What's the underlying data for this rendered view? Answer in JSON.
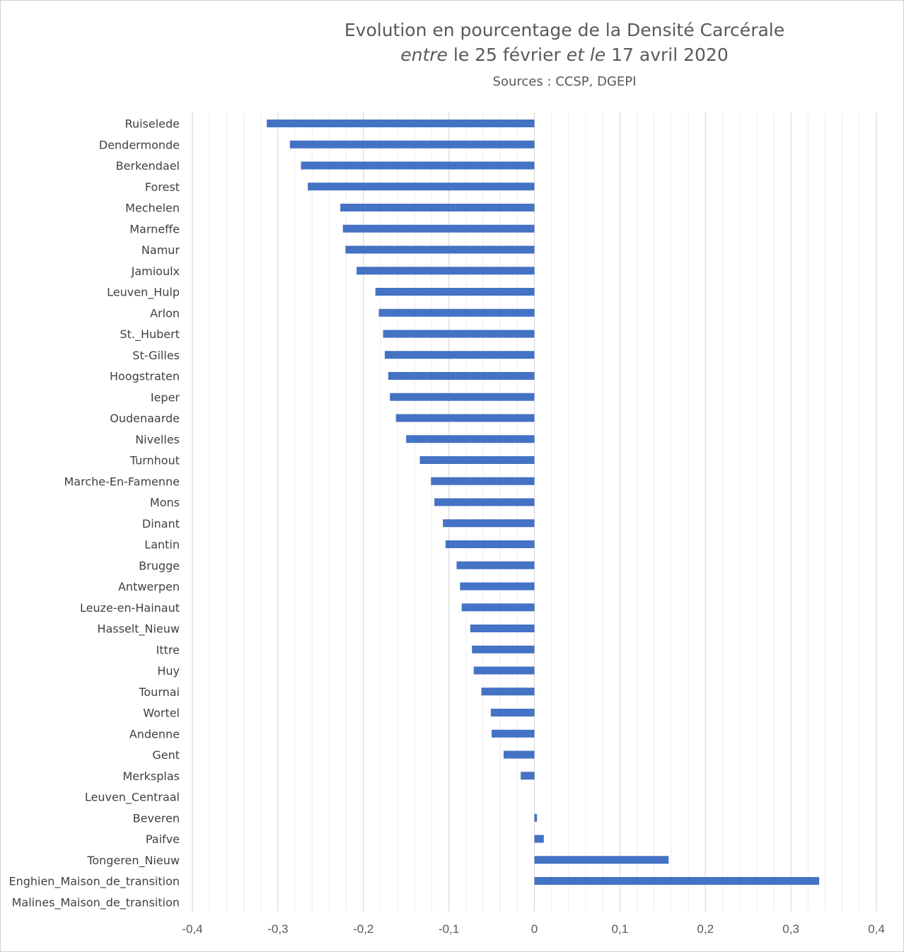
{
  "title": {
    "line1": "Evolution en pourcentage de la Densité Carcérale",
    "line2_parts": [
      {
        "text": "entre",
        "italic": true
      },
      {
        "text": " le 25 février ",
        "italic": false
      },
      {
        "text": "et le",
        "italic": true
      },
      {
        "text": " 17 avril 2020",
        "italic": false
      }
    ],
    "subtitle": "Sources : CCSP, DGEPI"
  },
  "chart_data": {
    "type": "bar",
    "orientation": "horizontal",
    "title": "Evolution en pourcentage de la Densité Carcérale entre le 25 février et le 17 avril 2020",
    "subtitle": "Sources : CCSP, DGEPI",
    "categories": [
      "Ruiselede",
      "Dendermonde",
      "Berkendael",
      "Forest",
      "Mechelen",
      "Marneffe",
      "Namur",
      "Jamioulx",
      "Leuven_Hulp",
      "Arlon",
      "St._Hubert",
      "St-Gilles",
      "Hoogstraten",
      "Ieper",
      "Oudenaarde",
      "Nivelles",
      "Turnhout",
      "Marche-En-Famenne",
      "Mons",
      "Dinant",
      "Lantin",
      "Brugge",
      "Antwerpen",
      "Leuze-en-Hainaut",
      "Hasselt_Nieuw",
      "Ittre",
      "Huy",
      "Tournai",
      "Wortel",
      "Andenne",
      "Gent",
      "Merksplas",
      "Leuven_Centraal",
      "Beveren",
      "Paifve",
      "Tongeren_Nieuw",
      "Enghien_Maison_de_transition",
      "Malines_Maison_de_transition"
    ],
    "values": [
      -0.313,
      -0.286,
      -0.273,
      -0.265,
      -0.227,
      -0.224,
      -0.221,
      -0.208,
      -0.186,
      -0.182,
      -0.177,
      -0.175,
      -0.171,
      -0.169,
      -0.162,
      -0.15,
      -0.134,
      -0.121,
      -0.117,
      -0.107,
      -0.104,
      -0.091,
      -0.087,
      -0.085,
      -0.075,
      -0.073,
      -0.071,
      -0.062,
      -0.051,
      -0.05,
      -0.036,
      -0.016,
      0.0,
      0.003,
      0.011,
      0.157,
      0.333,
      0.0
    ],
    "xlim": [
      -0.4,
      0.4
    ],
    "ticks": [
      "-0,4",
      "-0,3",
      "-0,2",
      "-0,1",
      "0",
      "0,1",
      "0,2",
      "0,3",
      "0,4"
    ],
    "tick_values": [
      -0.4,
      -0.3,
      -0.2,
      -0.1,
      0,
      0.1,
      0.2,
      0.3,
      0.4
    ],
    "minor_step": 0.02,
    "grid": true,
    "legend": "none",
    "bar_color": "#4472C4",
    "major_grid_color": "#d9d9d9",
    "minor_grid_color": "#ececec"
  }
}
